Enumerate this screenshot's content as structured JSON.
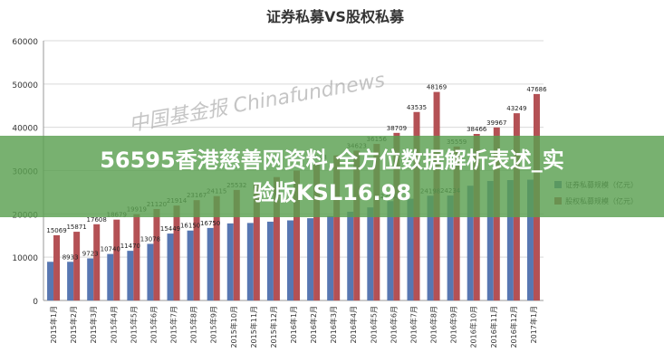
{
  "chart_data": {
    "type": "bar",
    "title": "证券私募VS股权私募",
    "ylim": [
      0,
      60000
    ],
    "yticks": [
      0,
      10000,
      20000,
      30000,
      40000,
      50000,
      60000
    ],
    "ytick_labels": [
      "0",
      "10000",
      "20000",
      "30000",
      "40000",
      "50000",
      "60000"
    ],
    "grid": true,
    "legend_position": "right",
    "categories": [
      "2015年1月",
      "2015年2月",
      "2015年3月",
      "2015年4月",
      "2015年5月",
      "2015年6月",
      "2015年7月",
      "2015年8月",
      "2015年9月",
      "2015年10月",
      "2015年11月",
      "2015年12月",
      "2016年1月",
      "2016年2月",
      "2016年3月",
      "2016年4月",
      "2016年5月",
      "2016年6月",
      "2016年7月",
      "2016年8月",
      "2016年9月",
      "2016年10月",
      "2016年11月",
      "2016年12月",
      "2017年1月"
    ],
    "series": [
      {
        "name": "证券私募规模（亿元）",
        "color": "#5877b2",
        "values": [
          8933,
          8933,
          9723,
          10740,
          11470,
          13078,
          15449,
          16150,
          16750,
          17800,
          17900,
          18200,
          18500,
          19000,
          19500,
          20500,
          21500,
          22955,
          23500,
          24198,
          24234,
          26500,
          27600,
          27800,
          27900
        ],
        "labels": [
          "",
          "8933",
          "9723",
          "10740",
          "11470",
          "13078",
          "15449",
          "16150",
          "16750",
          "",
          "",
          "",
          "",
          "",
          "",
          "",
          "",
          "22955",
          "",
          "24198",
          "24234",
          "",
          "",
          "",
          ""
        ]
      },
      {
        "name": "股权私募规模（亿元）",
        "color": "#b45155",
        "values": [
          15069,
          15871,
          17608,
          18679,
          19919,
          21120,
          21914,
          23167,
          24115,
          25532,
          27000,
          28500,
          30000,
          32018,
          33500,
          34623,
          36156,
          38709,
          43535,
          48169,
          35559,
          38466,
          39967,
          43249,
          47686
        ],
        "labels": [
          "15069",
          "15871",
          "17608",
          "18679",
          "19919",
          "21120",
          "21914",
          "23167",
          "24115",
          "25532",
          "",
          "",
          "",
          "32018",
          "",
          "34623",
          "36156",
          "38709",
          "43535",
          "48169",
          "35559",
          "38466",
          "39967",
          "43249",
          "47686"
        ]
      }
    ]
  },
  "watermark": "中国基金报 Chinafundnews",
  "banner": {
    "line1": "56595香港慈善网资料,全方位数据解析表述_实",
    "line2": "验版KSL16.98"
  }
}
